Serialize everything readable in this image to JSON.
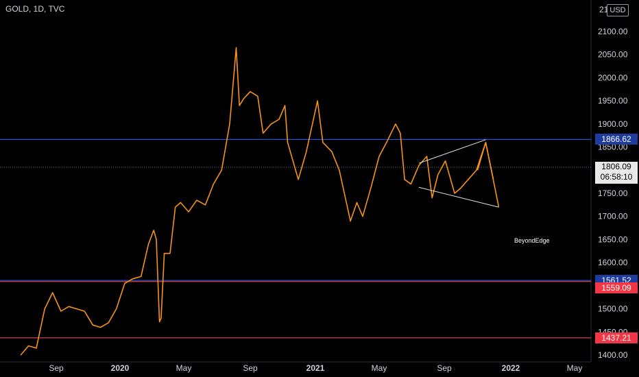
{
  "header": {
    "symbol": "GOLD, 1D, TVC"
  },
  "price_axis": {
    "currency": "USD",
    "top_label": "21",
    "ticks": [
      "2100.00",
      "2050.00",
      "2000.00",
      "1950.00",
      "1900.00",
      "1850.00",
      "1750.00",
      "1700.00",
      "1650.00",
      "1600.00",
      "1500.00",
      "1450.00",
      "1400.00"
    ]
  },
  "time_axis": {
    "ticks": [
      "Sep",
      "2020",
      "May",
      "Sep",
      "2021",
      "May",
      "Sep",
      "2022",
      "May"
    ]
  },
  "levels": [
    {
      "price": "1866.62",
      "color": "#2962ff",
      "tag_color": "#1e3c9e"
    },
    {
      "price": "1561.52",
      "color": "#2962ff",
      "tag_color": "#1e3c9e"
    },
    {
      "price": "1559.09",
      "color": "#ff5252",
      "tag_color": "#f23645"
    },
    {
      "price": "1437.21",
      "color": "#ff5252",
      "tag_color": "#f23645"
    }
  ],
  "last_price": {
    "price": "1806.09",
    "countdown": "06:58:10"
  },
  "watermark": "BeyondEdge",
  "chart_data": {
    "type": "line",
    "title": "GOLD, 1D, TVC",
    "ylim": [
      1395,
      2135
    ],
    "series": [
      {
        "color": "#f7931a",
        "x": [
          "2019-06-25",
          "2019-07-10",
          "2019-07-25",
          "2019-08-10",
          "2019-08-25",
          "2019-09-10",
          "2019-09-25",
          "2019-10-10",
          "2019-10-25",
          "2019-11-10",
          "2019-11-25",
          "2019-12-10",
          "2019-12-25",
          "2020-01-10",
          "2020-01-25",
          "2020-02-10",
          "2020-02-24",
          "2020-03-05",
          "2020-03-10",
          "2020-03-16",
          "2020-03-19",
          "2020-03-25",
          "2020-04-05",
          "2020-04-15",
          "2020-04-25",
          "2020-05-10",
          "2020-05-25",
          "2020-06-10",
          "2020-06-25",
          "2020-07-10",
          "2020-07-25",
          "2020-08-06",
          "2020-08-12",
          "2020-08-20",
          "2020-09-01",
          "2020-09-15",
          "2020-09-25",
          "2020-10-10",
          "2020-10-25",
          "2020-11-05",
          "2020-11-10",
          "2020-11-30",
          "2020-12-15",
          "2021-01-05",
          "2021-01-15",
          "2021-02-01",
          "2021-02-15",
          "2021-03-08",
          "2021-03-20",
          "2021-03-31",
          "2021-04-15",
          "2021-05-01",
          "2021-05-15",
          "2021-06-01",
          "2021-06-10",
          "2021-06-18",
          "2021-06-30",
          "2021-07-15",
          "2021-07-30",
          "2021-08-09",
          "2021-08-20",
          "2021-09-03",
          "2021-09-20",
          "2021-09-30",
          "2021-10-15",
          "2021-10-30",
          "2021-11-16",
          "2021-11-30"
        ],
        "values": [
          1400,
          1420,
          1415,
          1500,
          1535,
          1495,
          1505,
          1500,
          1495,
          1465,
          1460,
          1470,
          1500,
          1555,
          1565,
          1570,
          1640,
          1670,
          1650,
          1472,
          1480,
          1620,
          1620,
          1720,
          1730,
          1710,
          1735,
          1725,
          1770,
          1800,
          1900,
          2065,
          1940,
          1955,
          1970,
          1960,
          1880,
          1900,
          1910,
          1940,
          1860,
          1780,
          1840,
          1950,
          1860,
          1840,
          1800,
          1690,
          1730,
          1700,
          1760,
          1830,
          1860,
          1900,
          1880,
          1780,
          1770,
          1810,
          1830,
          1740,
          1790,
          1820,
          1750,
          1760,
          1780,
          1800,
          1860,
          1780
        ]
      }
    ],
    "overlay_triangle": {
      "upper": [
        [
          "2021-07-15",
          1815
        ],
        [
          "2021-11-16",
          1866
        ]
      ],
      "lower": [
        [
          "2021-07-15",
          1763
        ],
        [
          "2021-12-10",
          1720
        ]
      ]
    },
    "projection": [
      [
        "2021-11-01",
        1800
      ],
      [
        "2021-11-16",
        1860
      ],
      [
        "2021-12-10",
        1720
      ]
    ],
    "legend": "none",
    "grid": false
  }
}
